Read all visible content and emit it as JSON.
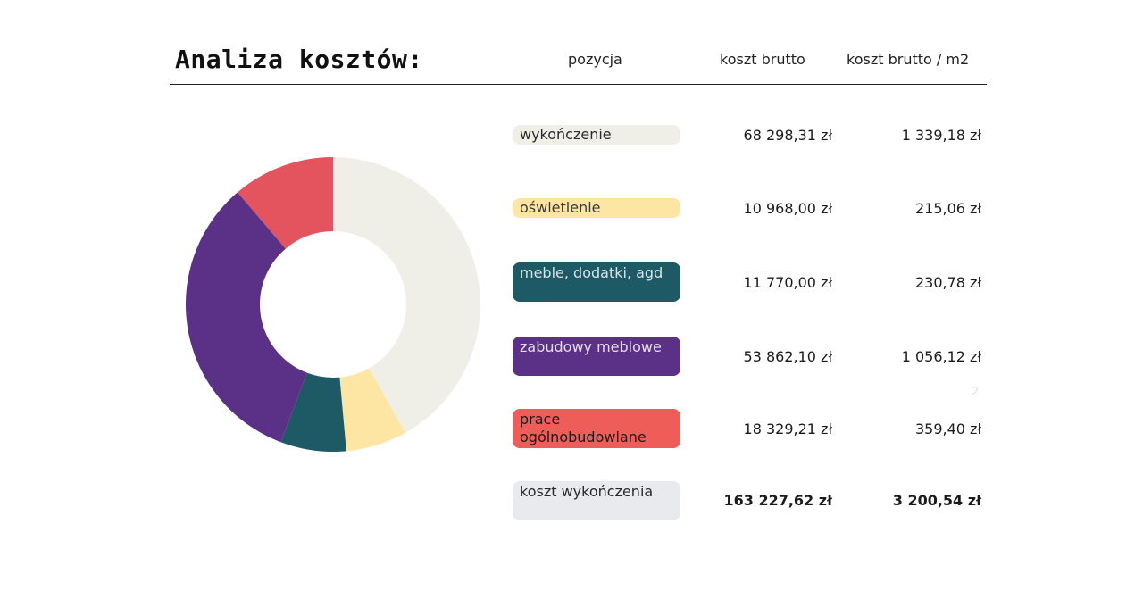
{
  "title": "Analiza kosztów:",
  "headers": {
    "position": "pozycja",
    "gross": "koszt brutto",
    "gross_m2": "koszt brutto / m2"
  },
  "rows": [
    {
      "label": "wykończenie",
      "gross": "68 298,31 zł",
      "gross_m2": "1 339,18 zł",
      "color": "#f0efe7",
      "text_color": "#2a2a2a"
    },
    {
      "label": "oświetlenie",
      "gross": "10 968,00 zł",
      "gross_m2": "215,06 zł",
      "color": "#fde6a3",
      "text_color": "#3a3a3a"
    },
    {
      "label": "meble, dodatki, agd",
      "gross": "11 770,00 zł",
      "gross_m2": "230,78 zł",
      "color": "#1e5a66",
      "text_color": "#d8e4e6"
    },
    {
      "label": "zabudowy meblowe",
      "gross": "53 862,10 zł",
      "gross_m2": "1 056,12 zł",
      "color": "#5b3187",
      "text_color": "#e6dcf0"
    },
    {
      "label": "prace ogólnobudowlane",
      "gross": "18 329,21 zł",
      "gross_m2": "359,40 zł",
      "color": "#ee5d57",
      "text_color": "#1b1b1b"
    }
  ],
  "total": {
    "label": "koszt wykończenia",
    "gross": "163 227,62 zł",
    "gross_m2": "3 200,54 zł",
    "color": "#e9eaee",
    "text_color": "#2a2a2a"
  },
  "stray_mark": "2",
  "chart_data": {
    "type": "pie",
    "variant": "donut",
    "labels": [
      "wykończenie",
      "oświetlenie",
      "meble, dodatki, agd",
      "zabudowy meblowe",
      "prace ogólnobudowlane"
    ],
    "values": [
      68298.31,
      10968.0,
      11770.0,
      53862.1,
      18329.21
    ],
    "colors": [
      "#f0efe7",
      "#fde6a3",
      "#1e5a66",
      "#5b3187",
      "#e3545e"
    ],
    "start_angle_deg": 0,
    "direction": "clockwise"
  }
}
